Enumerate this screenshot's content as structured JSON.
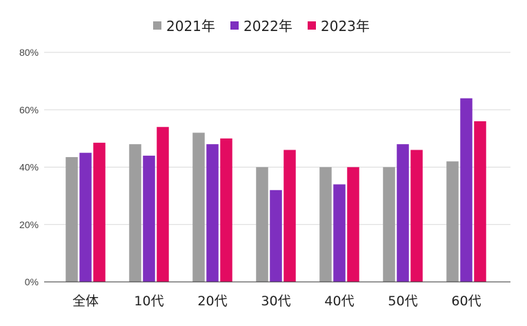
{
  "chart_data": {
    "type": "bar",
    "categories": [
      "全体",
      "10代",
      "20代",
      "30代",
      "40代",
      "50代",
      "60代"
    ],
    "series": [
      {
        "name": "2021年",
        "color": "#9e9e9e",
        "values": [
          43.5,
          48,
          52,
          40,
          40,
          40,
          42
        ]
      },
      {
        "name": "2022年",
        "color": "#7e2fbf",
        "values": [
          45,
          44,
          48,
          32,
          34,
          48,
          64
        ]
      },
      {
        "name": "2023年",
        "color": "#e30b61",
        "values": [
          48.5,
          54,
          50,
          46,
          40,
          46,
          56
        ]
      }
    ],
    "yticks": [
      "0%",
      "20%",
      "40%",
      "60%",
      "80%"
    ],
    "ylim": [
      0,
      80
    ],
    "title": "",
    "xlabel": "",
    "ylabel": "",
    "legend": "top-center",
    "grid": true
  }
}
